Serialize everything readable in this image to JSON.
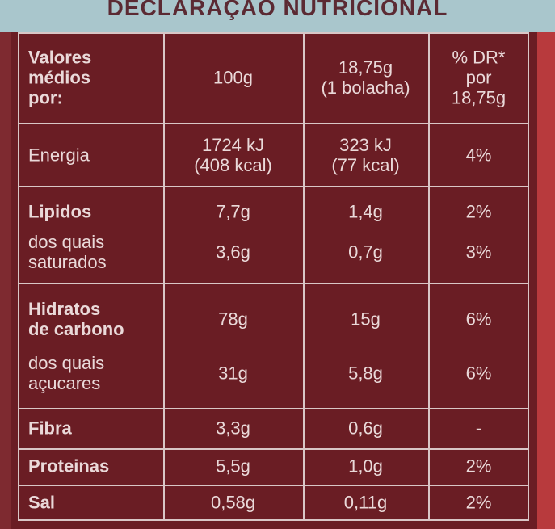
{
  "title": "DECLARAÇAO NUTRICIONAL",
  "header": [
    [
      "Valores",
      "médios",
      "por:"
    ],
    [
      "100g"
    ],
    [
      "18,75g",
      "(1 bolacha)"
    ],
    [
      "% DR*",
      "por",
      "18,75g"
    ]
  ],
  "rows": [
    [
      [
        "Energia"
      ],
      [
        "1724 kJ",
        "(408 kcal)"
      ],
      [
        "323 kJ",
        "(77 kcal)"
      ],
      [
        "4%"
      ]
    ],
    [
      [
        "Lipidos"
      ],
      [
        "7,7g"
      ],
      [
        "1,4g"
      ],
      [
        "2%"
      ]
    ],
    [
      [
        "dos quais",
        "saturados"
      ],
      [
        "3,6g"
      ],
      [
        "0,7g"
      ],
      [
        "3%"
      ]
    ],
    [
      [
        "Hidratos",
        "de carbono"
      ],
      [
        "78g"
      ],
      [
        "15g"
      ],
      [
        "6%"
      ]
    ],
    [
      [
        "dos quais",
        "açucares"
      ],
      [
        "31g"
      ],
      [
        "5,8g"
      ],
      [
        "6%"
      ]
    ],
    [
      [
        "Fibra"
      ],
      [
        "3,3g"
      ],
      [
        "0,6g"
      ],
      [
        "-"
      ]
    ],
    [
      [
        "Proteinas"
      ],
      [
        "5,5g"
      ],
      [
        "1,0g"
      ],
      [
        "2%"
      ]
    ],
    [
      [
        "Sal"
      ],
      [
        "0,58g"
      ],
      [
        "0,11g"
      ],
      [
        "2%"
      ]
    ]
  ]
}
